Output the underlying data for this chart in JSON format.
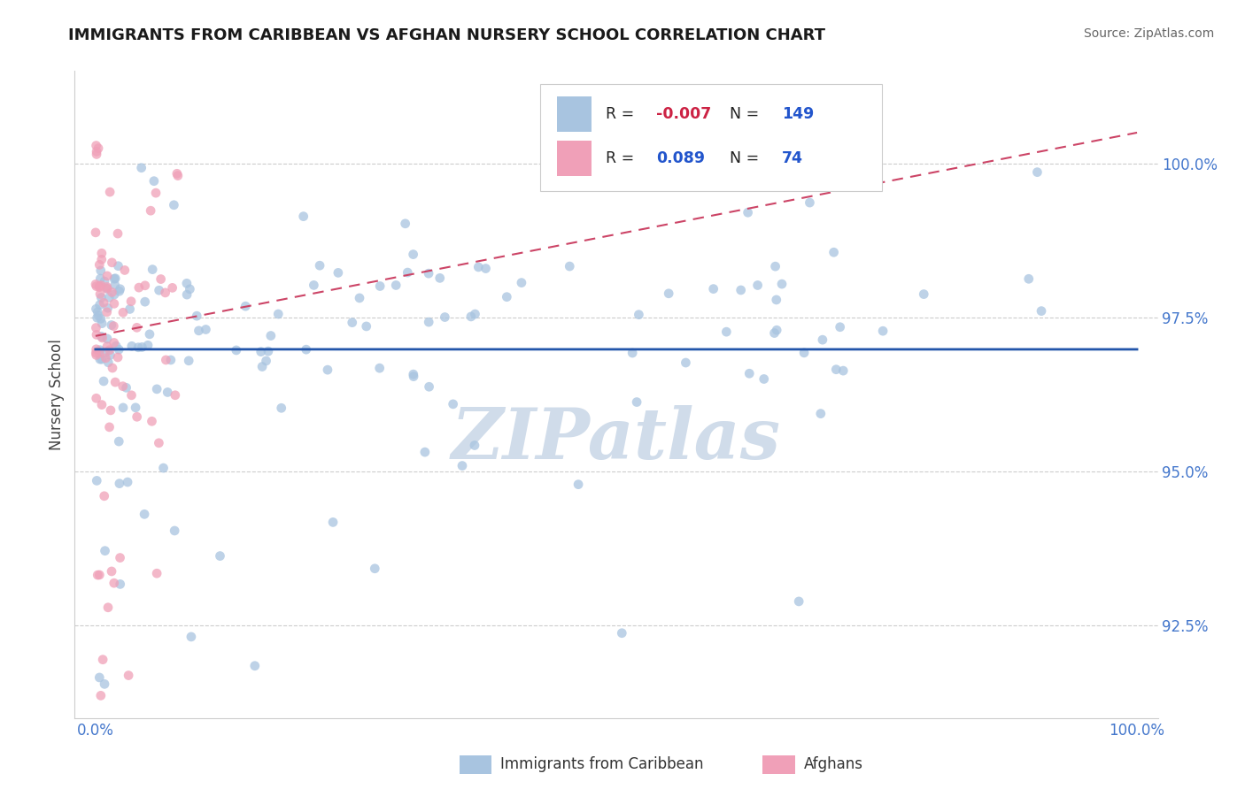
{
  "title": "IMMIGRANTS FROM CARIBBEAN VS AFGHAN NURSERY SCHOOL CORRELATION CHART",
  "source_text": "Source: ZipAtlas.com",
  "ylabel": "Nursery School",
  "legend_label_1": "Immigrants from Caribbean",
  "legend_label_2": "Afghans",
  "r1": -0.007,
  "n1": 149,
  "r2": 0.089,
  "n2": 74,
  "color_blue": "#a8c4e0",
  "color_pink": "#f0a0b8",
  "color_line_blue": "#2255aa",
  "color_line_pink": "#cc4466",
  "color_title": "#1a1a1a",
  "color_source": "#666666",
  "color_r_neg": "#cc2244",
  "color_r_pos": "#2255cc",
  "color_n": "#2255cc",
  "color_tick": "#4477cc",
  "xlim": [
    -0.02,
    1.02
  ],
  "ylim": [
    91.0,
    101.5
  ],
  "yticks": [
    92.5,
    95.0,
    97.5,
    100.0
  ],
  "xticks": [
    0.0,
    1.0
  ],
  "xticklabels": [
    "0.0%",
    "100.0%"
  ],
  "yticklabels": [
    "92.5%",
    "95.0%",
    "97.5%",
    "100.0%"
  ],
  "watermark": "ZIPatlas",
  "watermark_color": "#d0dcea",
  "background_color": "#ffffff",
  "seed": 42
}
